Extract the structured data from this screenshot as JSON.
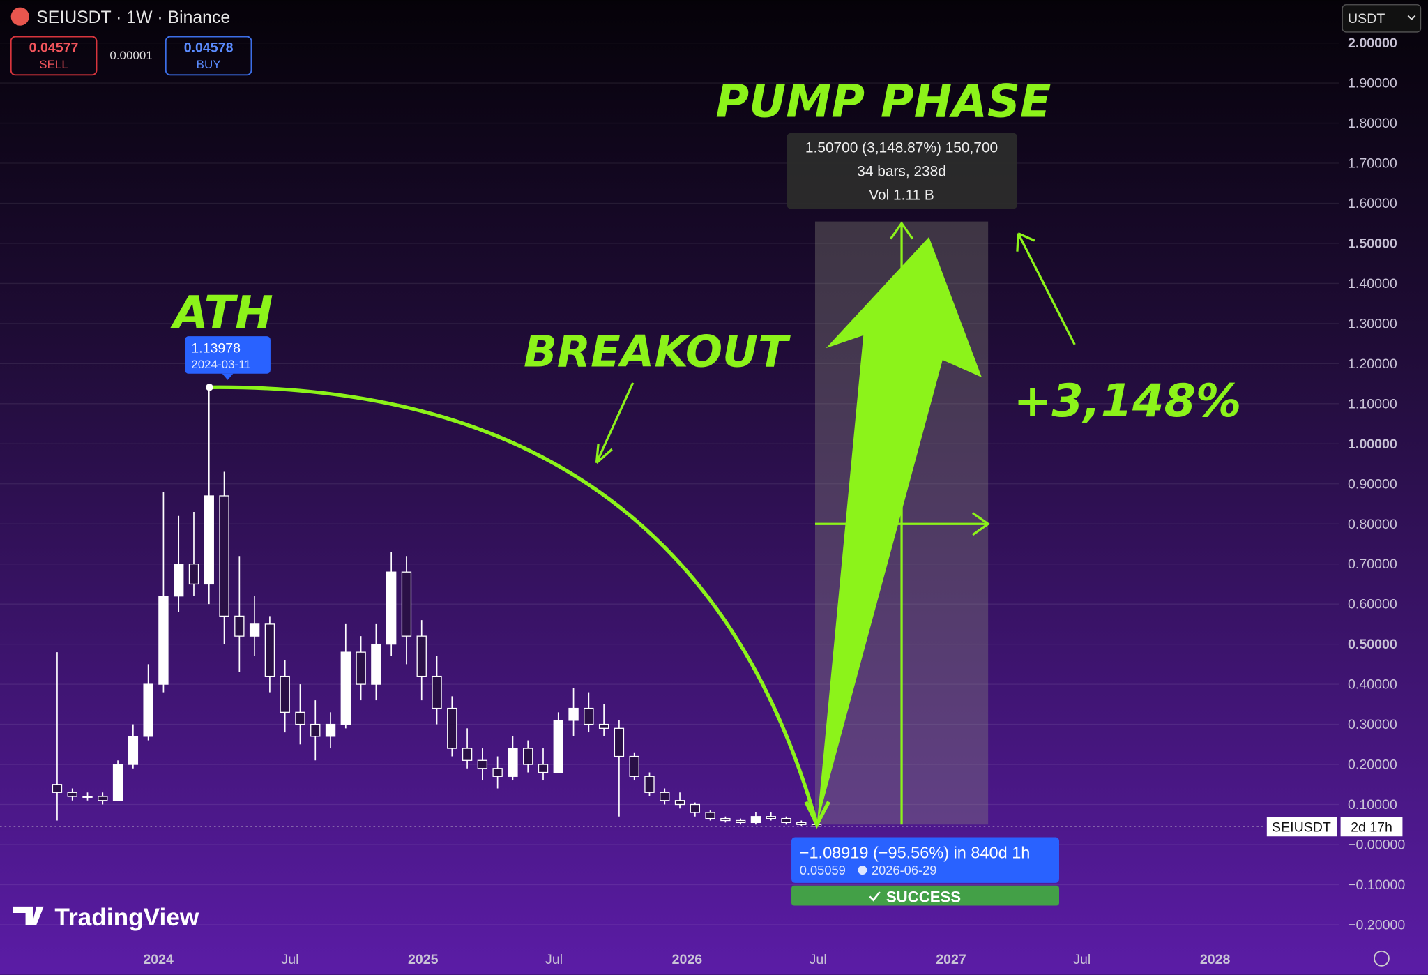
{
  "header": {
    "title": "SEIUSDT · 1W · Binance",
    "sell_price": "0.04577",
    "sell": "SELL",
    "spread": "0.00001",
    "buy_price": "0.04578",
    "buy": "BUY",
    "currency": "USDT"
  },
  "brand": "TradingView",
  "chart_data": {
    "type": "candlestick",
    "annotations": {
      "ath": "ATH",
      "breakout": "BREAKOUT",
      "pump": "PUMP PHASE",
      "gain": "+3,148%"
    },
    "ath_label": {
      "price": 1.13978,
      "date": "2024-03-11"
    },
    "measure_up": [
      "1.50700 (3,148.87%) 150,700",
      "34 bars, 238d",
      "Vol 1.11 B"
    ],
    "measure_down": {
      "text": "−1.08919 (−95.56%) in 840d 1h",
      "price": "0.05059",
      "date": "2026-06-29",
      "status": "SUCCESS"
    },
    "countdown": "2d 17h",
    "series": [
      {
        "name": "SEIUSDT",
        "color": "#ffffff",
        "x": [
          "2023-08-14",
          "2023-09-04",
          "2023-09-25",
          "2023-10-16",
          "2023-11-06",
          "2023-11-27",
          "2023-12-18",
          "2024-01-08",
          "2024-01-29",
          "2024-02-19",
          "2024-03-11",
          "2024-04-01",
          "2024-04-22",
          "2024-05-13",
          "2024-06-03",
          "2024-06-24",
          "2024-07-15",
          "2024-08-05",
          "2024-08-26",
          "2024-09-16",
          "2024-10-07",
          "2024-10-28",
          "2024-11-18",
          "2024-12-09",
          "2024-12-30",
          "2025-01-20",
          "2025-02-10",
          "2025-03-03",
          "2025-03-24",
          "2025-04-14",
          "2025-05-05",
          "2025-05-26",
          "2025-06-16",
          "2025-07-07",
          "2025-07-28",
          "2025-08-18",
          "2025-09-08",
          "2025-09-29",
          "2025-10-20",
          "2025-11-10",
          "2025-12-01",
          "2025-12-22",
          "2026-01-12",
          "2026-02-02",
          "2026-02-23",
          "2026-03-16",
          "2026-04-06",
          "2026-04-27",
          "2026-05-18",
          "2026-06-08",
          "2026-06-29"
        ],
        "open": [
          0.15,
          0.13,
          0.12,
          0.12,
          0.11,
          0.2,
          0.27,
          0.4,
          0.62,
          0.7,
          0.65,
          0.87,
          0.57,
          0.52,
          0.55,
          0.42,
          0.33,
          0.3,
          0.27,
          0.3,
          0.48,
          0.4,
          0.5,
          0.68,
          0.52,
          0.42,
          0.34,
          0.24,
          0.21,
          0.19,
          0.17,
          0.24,
          0.2,
          0.18,
          0.31,
          0.34,
          0.3,
          0.29,
          0.22,
          0.17,
          0.13,
          0.11,
          0.1,
          0.08,
          0.065,
          0.06,
          0.055,
          0.07,
          0.065,
          0.055,
          0.05
        ],
        "high": [
          0.48,
          0.14,
          0.13,
          0.13,
          0.21,
          0.3,
          0.45,
          0.88,
          0.82,
          0.83,
          1.13978,
          0.93,
          0.72,
          0.62,
          0.57,
          0.46,
          0.4,
          0.36,
          0.33,
          0.55,
          0.52,
          0.55,
          0.73,
          0.72,
          0.56,
          0.47,
          0.37,
          0.29,
          0.24,
          0.22,
          0.27,
          0.26,
          0.24,
          0.33,
          0.39,
          0.38,
          0.35,
          0.31,
          0.23,
          0.18,
          0.14,
          0.13,
          0.105,
          0.085,
          0.07,
          0.065,
          0.08,
          0.08,
          0.07,
          0.06,
          0.052
        ],
        "low": [
          0.06,
          0.11,
          0.11,
          0.1,
          0.11,
          0.19,
          0.26,
          0.38,
          0.58,
          0.62,
          0.6,
          0.5,
          0.43,
          0.47,
          0.38,
          0.28,
          0.25,
          0.21,
          0.24,
          0.29,
          0.36,
          0.36,
          0.47,
          0.45,
          0.36,
          0.3,
          0.22,
          0.19,
          0.16,
          0.14,
          0.16,
          0.18,
          0.16,
          0.18,
          0.27,
          0.28,
          0.27,
          0.07,
          0.16,
          0.12,
          0.1,
          0.09,
          0.07,
          0.06,
          0.055,
          0.05,
          0.05,
          0.06,
          0.05,
          0.045,
          0.045
        ],
        "close": [
          0.13,
          0.12,
          0.12,
          0.11,
          0.2,
          0.27,
          0.4,
          0.62,
          0.7,
          0.65,
          0.87,
          0.57,
          0.52,
          0.55,
          0.42,
          0.33,
          0.3,
          0.27,
          0.3,
          0.48,
          0.4,
          0.5,
          0.68,
          0.52,
          0.42,
          0.34,
          0.24,
          0.21,
          0.19,
          0.17,
          0.24,
          0.2,
          0.18,
          0.31,
          0.34,
          0.3,
          0.29,
          0.22,
          0.17,
          0.13,
          0.11,
          0.1,
          0.08,
          0.065,
          0.06,
          0.055,
          0.07,
          0.065,
          0.055,
          0.05,
          0.04577
        ]
      }
    ],
    "xlim": [
      "2023-05-27",
      "2028-06-20"
    ],
    "xticks": [
      {
        "value": "2024-01-01",
        "label": "2024"
      },
      {
        "value": "2024-07-01",
        "label": "Jul"
      },
      {
        "value": "2025-01-01",
        "label": "2025"
      },
      {
        "value": "2025-07-01",
        "label": "Jul"
      },
      {
        "value": "2026-01-01",
        "label": "2026"
      },
      {
        "value": "2026-07-01",
        "label": "Jul"
      },
      {
        "value": "2027-01-01",
        "label": "2027"
      },
      {
        "value": "2027-07-01",
        "label": "Jul"
      },
      {
        "value": "2028-01-01",
        "label": "2028"
      }
    ],
    "ylim": [
      -0.2455,
      2.1068
    ],
    "yticks": [
      {
        "value": 2,
        "label": "2.00000"
      },
      {
        "value": 1.9,
        "label": "1.90000"
      },
      {
        "value": 1.8,
        "label": "1.80000"
      },
      {
        "value": 1.7,
        "label": "1.70000"
      },
      {
        "value": 1.6,
        "label": "1.60000"
      },
      {
        "value": 1.5,
        "label": "1.50000"
      },
      {
        "value": 1.4,
        "label": "1.40000"
      },
      {
        "value": 1.3,
        "label": "1.30000"
      },
      {
        "value": 1.2,
        "label": "1.20000"
      },
      {
        "value": 1.1,
        "label": "1.10000"
      },
      {
        "value": 1,
        "label": "1.00000"
      },
      {
        "value": 0.9,
        "label": "0.90000"
      },
      {
        "value": 0.8,
        "label": "0.80000"
      },
      {
        "value": 0.7,
        "label": "0.70000"
      },
      {
        "value": 0.6,
        "label": "0.60000"
      },
      {
        "value": 0.5,
        "label": "0.50000"
      },
      {
        "value": 0.4,
        "label": "0.40000"
      },
      {
        "value": 0.3,
        "label": "0.30000"
      },
      {
        "value": 0.2,
        "label": "0.20000"
      },
      {
        "value": 0.1,
        "label": "0.10000"
      },
      {
        "value": 0,
        "label": "−0.00000"
      },
      {
        "value": -0.1,
        "label": "−0.10000"
      },
      {
        "value": -0.2,
        "label": "−0.20000"
      }
    ],
    "grid": true
  }
}
